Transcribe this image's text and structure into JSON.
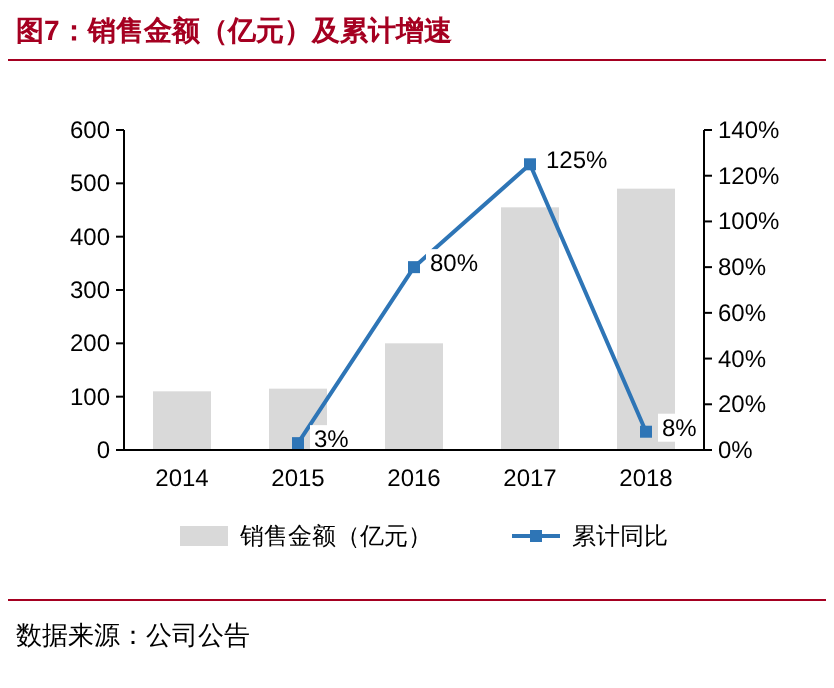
{
  "chart_data": {
    "type": "bar",
    "title": "图7：销售金额（亿元）及累计增速",
    "categories": [
      "2014",
      "2015",
      "2016",
      "2017",
      "2018"
    ],
    "series": [
      {
        "name": "销售金额（亿元）",
        "color": "#d9d9d9",
        "values": [
          110,
          115,
          200,
          455,
          490
        ]
      },
      {
        "name": "累计同比",
        "type": "line",
        "axis": "y2",
        "color": "#2e75b6",
        "marker": "square",
        "values": [
          null,
          3,
          80,
          125,
          8
        ],
        "value_labels": [
          null,
          "3%",
          "80%",
          "125%",
          "8%"
        ]
      }
    ],
    "ylim": [
      0,
      600
    ],
    "yticks": [
      0,
      100,
      200,
      300,
      400,
      500,
      600
    ],
    "y2lim": [
      0,
      140
    ],
    "y2ticks": [
      {
        "value": 0,
        "label": "0%"
      },
      {
        "value": 20,
        "label": "20%"
      },
      {
        "value": 40,
        "label": "40%"
      },
      {
        "value": 60,
        "label": "60%"
      },
      {
        "value": 80,
        "label": "80%"
      },
      {
        "value": 100,
        "label": "100%"
      },
      {
        "value": 120,
        "label": "120%"
      },
      {
        "value": 140,
        "label": "140%"
      }
    ],
    "legend": "bottom",
    "grid": false,
    "annotations": [
      "数据来源：公司公告"
    ]
  }
}
